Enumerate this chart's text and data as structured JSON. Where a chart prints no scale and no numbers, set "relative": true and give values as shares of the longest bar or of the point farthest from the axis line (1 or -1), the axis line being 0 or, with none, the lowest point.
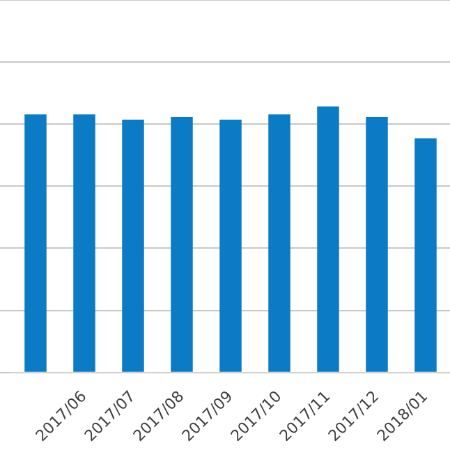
{
  "chart_data": {
    "type": "bar",
    "relative": true,
    "grid": true,
    "legend": false,
    "categories": [
      null,
      "2017/06",
      "2017/07",
      "2017/08",
      "2017/09",
      "2017/10",
      "2017/11",
      "2017/12",
      "2018/01"
    ],
    "series": [
      {
        "color": "#0a7bc4",
        "values": [
          0.97,
          0.97,
          0.95,
          0.96,
          0.95,
          0.97,
          1,
          0.96,
          0.88
        ]
      }
    ]
  }
}
